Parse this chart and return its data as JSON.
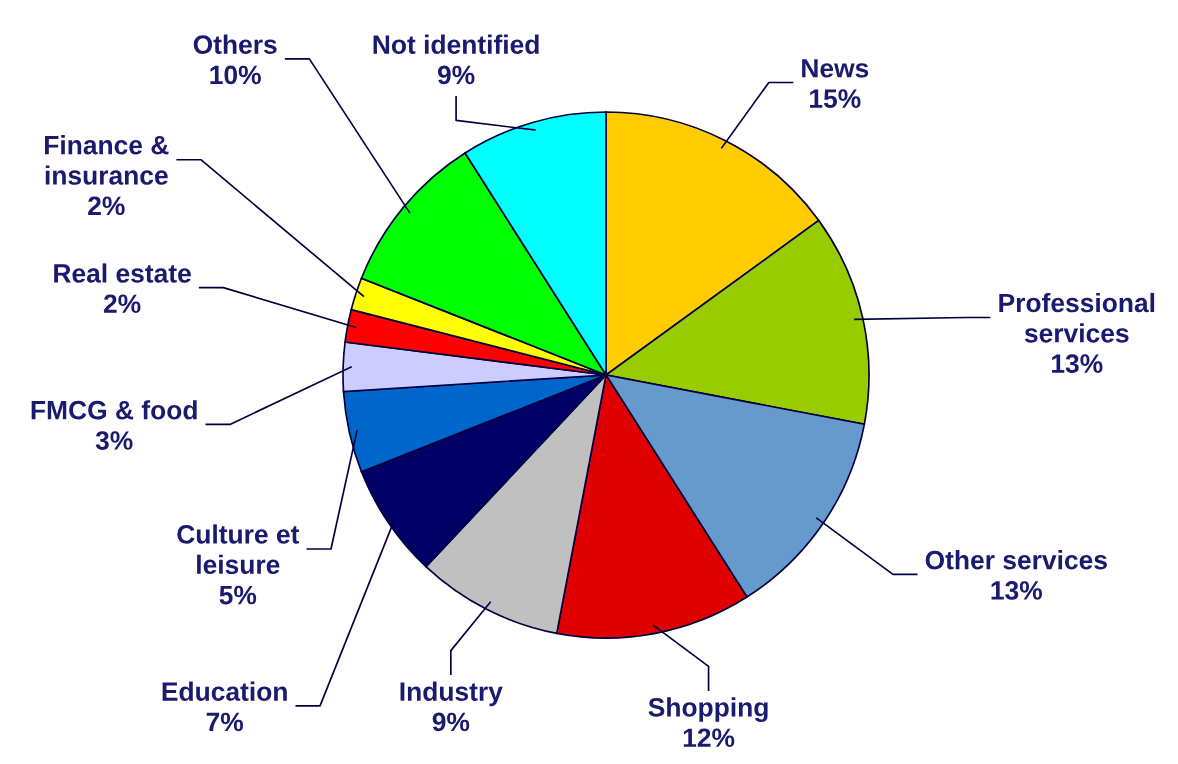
{
  "chart_data": {
    "type": "pie",
    "categories": [
      "News",
      "Professional\nservices",
      "Other services",
      "Shopping",
      "Industry",
      "Education",
      "Culture et\nleisure",
      "FMCG & food",
      "Real estate",
      "Finance &\ninsurance",
      "Others",
      "Not identified"
    ],
    "values": [
      15,
      13,
      13,
      12,
      9,
      7,
      5,
      3,
      2,
      2,
      10,
      9
    ],
    "value_labels": [
      "15%",
      "13%",
      "13%",
      "12%",
      "9%",
      "7%",
      "5%",
      "3%",
      "2%",
      "2%",
      "10%",
      "9%"
    ],
    "colors": [
      "#ffcc00",
      "#99cc00",
      "#6699cc",
      "#e00000",
      "#c0c0c0",
      "#000066",
      "#0066cc",
      "#ccccff",
      "#ff0000",
      "#ffff00",
      "#00ff00",
      "#00ffff"
    ],
    "legend": false
  }
}
